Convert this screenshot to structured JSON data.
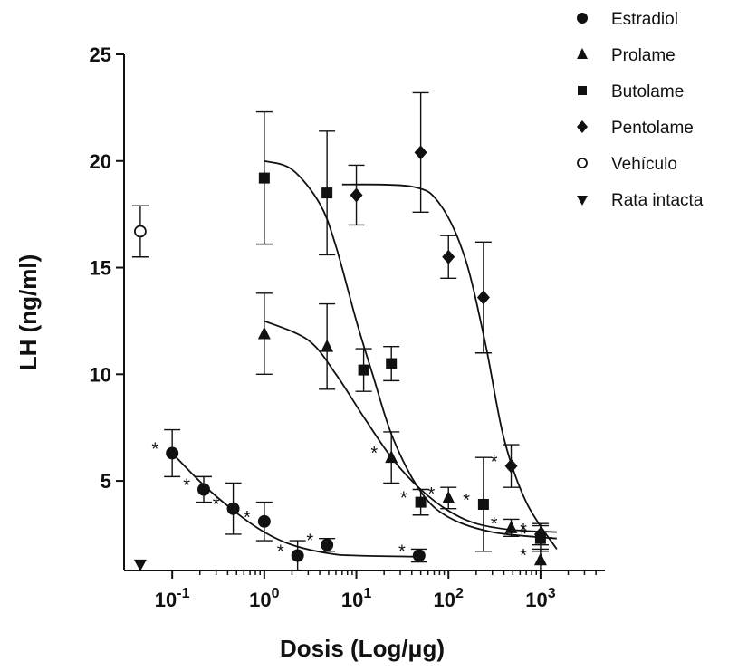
{
  "chart_data": {
    "type": "scatter",
    "xlabel": "Dosis (Log/μg)",
    "ylabel": "LH (ng/ml)",
    "x_scale": "log",
    "xlim": [
      0.03,
      5000
    ],
    "ylim": [
      0.8,
      25
    ],
    "x_ticks": [
      {
        "value": 0.1,
        "base": "10",
        "exp": "-1"
      },
      {
        "value": 1,
        "base": "10",
        "exp": "0"
      },
      {
        "value": 10,
        "base": "10",
        "exp": "1"
      },
      {
        "value": 100,
        "base": "10",
        "exp": "2"
      },
      {
        "value": 1000,
        "base": "10",
        "exp": "3"
      }
    ],
    "y_ticks": [
      {
        "value": 5,
        "label": "5"
      },
      {
        "value": 10,
        "label": "10"
      },
      {
        "value": 15,
        "label": "15"
      },
      {
        "value": 20,
        "label": "20"
      },
      {
        "value": 25,
        "label": "25"
      }
    ],
    "legend_position": "top-right",
    "series": [
      {
        "name": "Estradiol",
        "marker": "circle",
        "points": [
          {
            "x": 0.1,
            "y": 6.3,
            "err": 1.1,
            "star": true
          },
          {
            "x": 0.22,
            "y": 4.6,
            "err": 0.6,
            "star": true
          },
          {
            "x": 0.46,
            "y": 3.7,
            "err": 1.2,
            "star": true
          },
          {
            "x": 1.0,
            "y": 3.1,
            "err": 0.9,
            "star": true
          },
          {
            "x": 2.3,
            "y": 1.5,
            "err": 0.7,
            "star": true
          },
          {
            "x": 4.8,
            "y": 2.0,
            "err": 0.3,
            "star": true
          },
          {
            "x": 48,
            "y": 1.5,
            "err": 0.3,
            "star": true
          }
        ],
        "fit": [
          [
            0.1,
            6.3
          ],
          [
            0.22,
            4.8
          ],
          [
            0.5,
            3.5
          ],
          [
            1,
            2.6
          ],
          [
            2,
            2.0
          ],
          [
            5,
            1.6
          ],
          [
            10,
            1.5
          ],
          [
            45,
            1.45
          ]
        ]
      },
      {
        "name": "Prolame",
        "marker": "triangle-up",
        "points": [
          {
            "x": 1.0,
            "y": 11.9,
            "err": 1.9,
            "star": false
          },
          {
            "x": 4.8,
            "y": 11.3,
            "err": 2.0,
            "star": false
          },
          {
            "x": 24,
            "y": 6.1,
            "err": 1.2,
            "star": true
          },
          {
            "x": 100,
            "y": 4.2,
            "err": 0.5,
            "star": true
          },
          {
            "x": 480,
            "y": 2.8,
            "err": 0.4,
            "star": true
          },
          {
            "x": 1000,
            "y": 1.3,
            "err": 0.5,
            "star": true
          }
        ],
        "fit": [
          [
            1,
            12.5
          ],
          [
            3,
            11.6
          ],
          [
            6,
            10.0
          ],
          [
            12,
            8.0
          ],
          [
            25,
            6.0
          ],
          [
            50,
            4.6
          ],
          [
            100,
            3.6
          ],
          [
            200,
            3.0
          ],
          [
            500,
            2.7
          ],
          [
            1500,
            2.6
          ]
        ]
      },
      {
        "name": "Butolame",
        "marker": "square",
        "points": [
          {
            "x": 1.0,
            "y": 19.2,
            "err": 3.1,
            "star": false
          },
          {
            "x": 4.8,
            "y": 18.5,
            "err": 2.9,
            "star": false
          },
          {
            "x": 12,
            "y": 10.2,
            "err": 1.0,
            "star": false
          },
          {
            "x": 24,
            "y": 10.5,
            "err": 0.8,
            "star": false
          },
          {
            "x": 50,
            "y": 4.0,
            "err": 0.6,
            "star": true
          },
          {
            "x": 240,
            "y": 3.9,
            "err": 2.2,
            "star": true
          },
          {
            "x": 1000,
            "y": 2.3,
            "err": 0.6,
            "star": true
          }
        ],
        "fit": [
          [
            1,
            20.0
          ],
          [
            2,
            19.6
          ],
          [
            4,
            18.0
          ],
          [
            6,
            16.0
          ],
          [
            10,
            12.5
          ],
          [
            15,
            10.0
          ],
          [
            25,
            7.0
          ],
          [
            50,
            4.5
          ],
          [
            100,
            3.3
          ],
          [
            300,
            2.6
          ],
          [
            1500,
            2.3
          ]
        ]
      },
      {
        "name": "Pentolame",
        "marker": "diamond",
        "points": [
          {
            "x": 10,
            "y": 18.4,
            "err": 1.4,
            "star": false
          },
          {
            "x": 50,
            "y": 20.4,
            "err": 2.8,
            "star": false
          },
          {
            "x": 100,
            "y": 15.5,
            "err": 1.0,
            "star": false
          },
          {
            "x": 240,
            "y": 13.6,
            "err": 2.6,
            "star": false
          },
          {
            "x": 480,
            "y": 5.7,
            "err": 1.0,
            "star": true
          },
          {
            "x": 1000,
            "y": 2.5,
            "err": 0.5,
            "star": true
          }
        ],
        "fit": [
          [
            7,
            18.9
          ],
          [
            40,
            18.8
          ],
          [
            80,
            18.0
          ],
          [
            150,
            15.5
          ],
          [
            250,
            11.5
          ],
          [
            400,
            7.0
          ],
          [
            700,
            4.0
          ],
          [
            1500,
            1.8
          ]
        ]
      },
      {
        "name": "Vehículo",
        "marker": "circle-open",
        "points": [
          {
            "x": 0.045,
            "y": 16.7,
            "err": 1.2,
            "star": false
          }
        ]
      },
      {
        "name": "Rata intacta",
        "marker": "triangle-down",
        "points": [
          {
            "x": 0.045,
            "y": 1.1,
            "err": 0,
            "star": false
          }
        ]
      }
    ]
  }
}
